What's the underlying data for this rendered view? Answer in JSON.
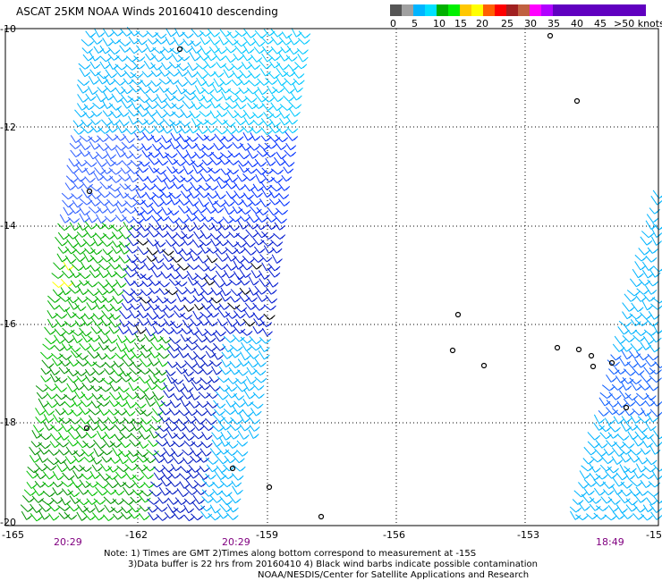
{
  "title": "ASCAT 25KM NOAA Winds 20160410 descending",
  "legend": {
    "colors": [
      "#555555",
      "#a0a0a0",
      "#00b4ff",
      "#00e0ff",
      "#00b000",
      "#00f000",
      "#ffc800",
      "#ffff00",
      "#ff6000",
      "#ff0000",
      "#a02020",
      "#c06040",
      "#ff00ff",
      "#b000ff",
      "#6000c0"
    ],
    "labels": [
      "0",
      "5",
      "10",
      "15",
      "20",
      "25",
      "30",
      "35",
      "40",
      "45",
      ">50 knots"
    ]
  },
  "axes": {
    "lat_labels": [
      "-10",
      "-12",
      "-14",
      "-16",
      "-18",
      "-20"
    ],
    "lon_labels": [
      "-165",
      "-162",
      "-159",
      "-156",
      "-153",
      "-15"
    ]
  },
  "swath_times": [
    "20:29",
    "20:29",
    "18:49"
  ],
  "notes": [
    "Note: 1) Times are GMT 2)Times along bottom correspond to measurement at -15S",
    "3)Data buffer is 22 hrs from 20160410 4) Black wind barbs indicate possible contamination",
    "NOAA/NESDIS/Center for Satellite Applications and Research"
  ]
}
